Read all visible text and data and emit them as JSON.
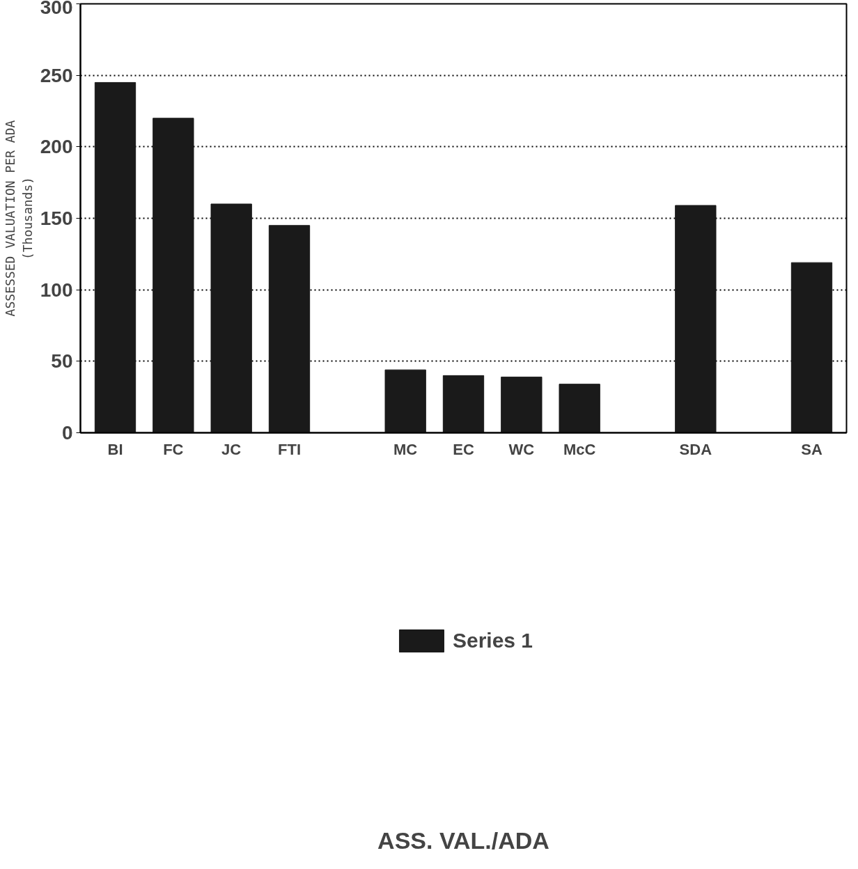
{
  "chart_data": {
    "type": "bar",
    "title": "ASS. VAL./ADA",
    "ylabel": "ASSESSED VALUATION PER ADA\n(Thousands)",
    "categories": [
      "BI",
      "FC",
      "JC",
      "FTI",
      null,
      "MC",
      "EC",
      "WC",
      "McC",
      null,
      "SDA",
      null,
      "SA"
    ],
    "series": [
      {
        "name": "Series 1",
        "color": "#1a1a1a",
        "values": [
          245,
          220,
          160,
          145,
          null,
          44,
          40,
          39,
          34,
          null,
          159,
          null,
          119
        ]
      }
    ],
    "ylim": [
      0,
      300
    ],
    "yticks": [
      0,
      50,
      100,
      150,
      200,
      250,
      300
    ],
    "grid": "y",
    "legend": "bottom"
  }
}
